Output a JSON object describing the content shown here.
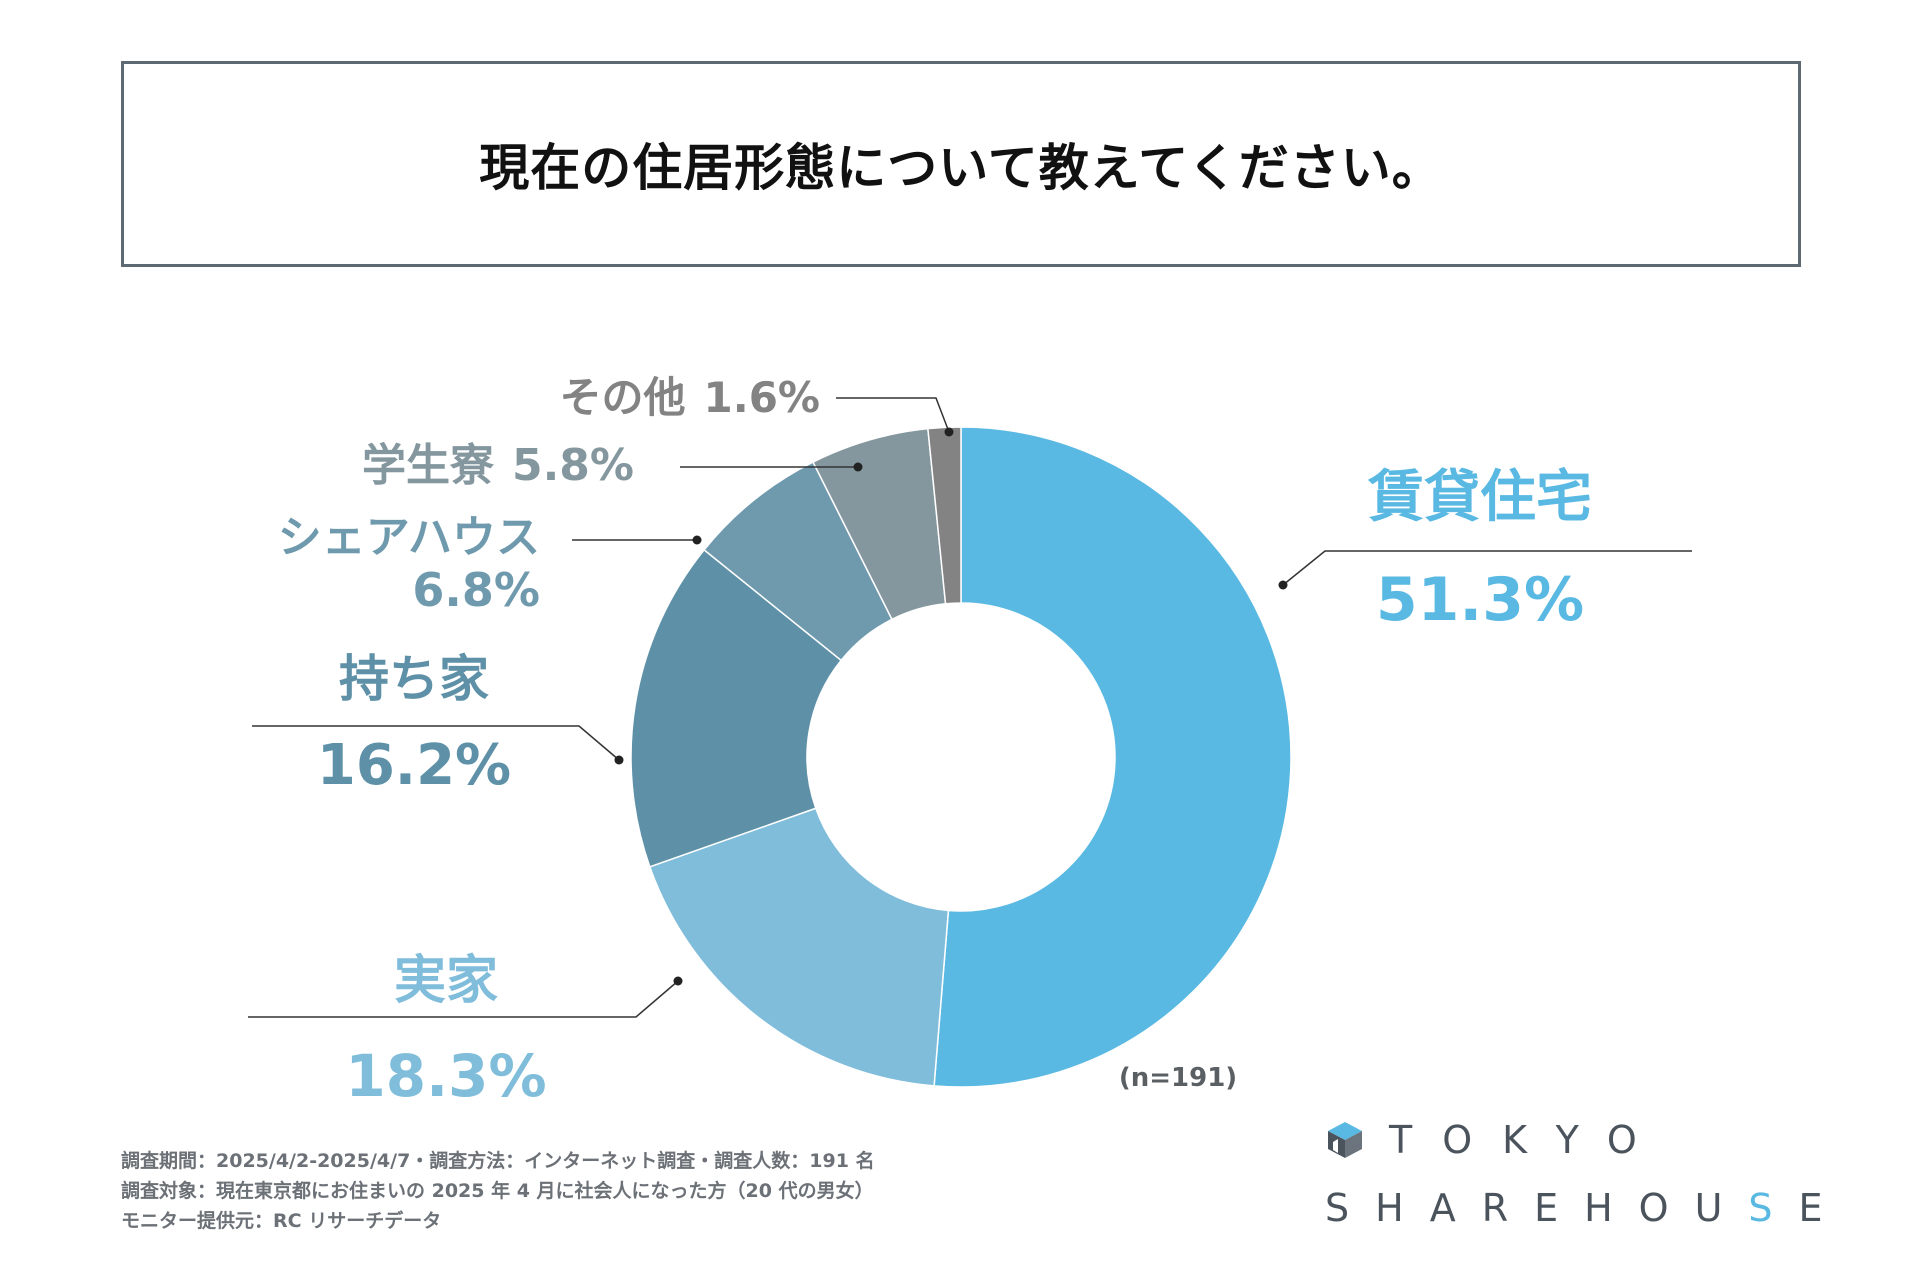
{
  "title": "現在の住居形態について教えてください。",
  "sample_note": "(n=191)",
  "footer": {
    "line1": "調査期間：2025/4/2-2025/4/7・調査方法：インターネット調査・調査人数：191 名",
    "line2": "調査対象：現在東京都にお住まいの 2025 年 4 月に社会人になった方（20 代の男女）",
    "line3": "モニター提供元：RC リサーチデータ"
  },
  "logo": {
    "top_text": "TOKYO",
    "bottom_pre": "SHAREHOU",
    "bottom_accent": "S",
    "bottom_post": "E",
    "icon": "house-cube-icon"
  },
  "chart_data": {
    "type": "pie",
    "variant": "donut",
    "title": "現在の住居形態について教えてください。",
    "n": 191,
    "slices": [
      {
        "name": "賃貸住宅",
        "value": 51.3,
        "label": "51.3%",
        "color": "#59b9e2"
      },
      {
        "name": "実家",
        "value": 18.3,
        "label": "18.3%",
        "color": "#80bddb"
      },
      {
        "name": "持ち家",
        "value": 16.2,
        "label": "16.2%",
        "color": "#5e91a8"
      },
      {
        "name": "シェアハウス",
        "value": 6.8,
        "label": "6.8%",
        "color": "#6f9aae"
      },
      {
        "name": "学生寮",
        "value": 5.8,
        "label": "5.8%",
        "color": "#84979f"
      },
      {
        "name": "その他",
        "value": 1.6,
        "label": "1.6%",
        "color": "#838383"
      }
    ],
    "label_colors": {
      "賃貸住宅": "#59b9e2",
      "実家": "#80bddb",
      "持ち家": "#5e91a8",
      "シェアハウス": "#6f9aae",
      "学生寮": "#84979f",
      "その他": "#838383"
    }
  }
}
